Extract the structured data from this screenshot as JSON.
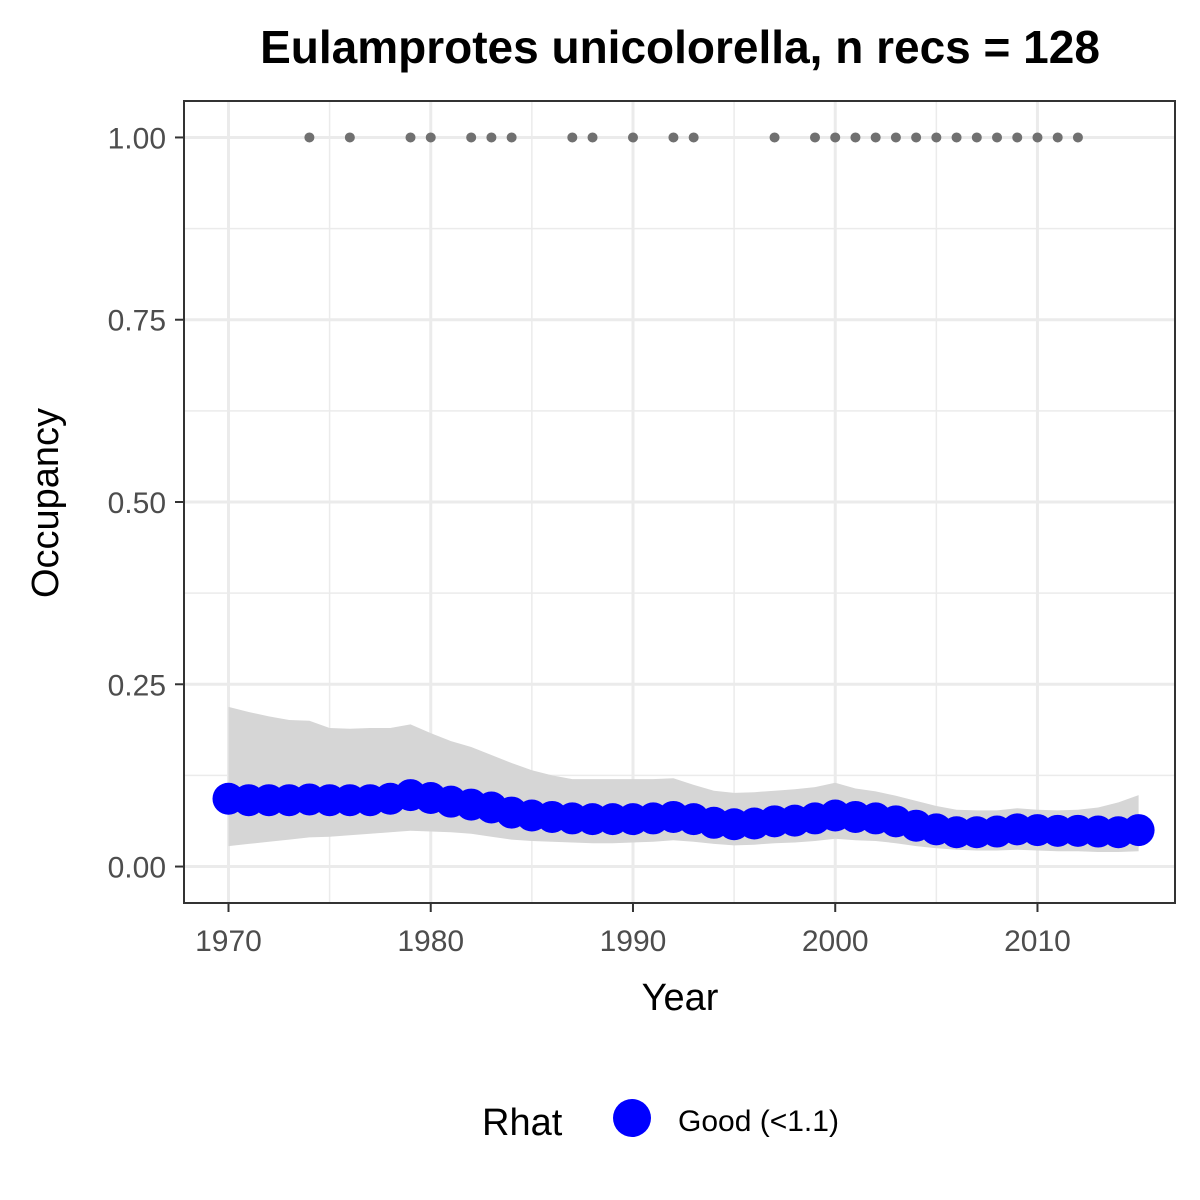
{
  "chart_data": {
    "type": "scatter",
    "title": "Eulamprotes unicolorella, n recs = 128",
    "xlabel": "Year",
    "ylabel": "Occupancy",
    "xlim": [
      1967.8,
      2016.8
    ],
    "ylim": [
      -0.05,
      1.05
    ],
    "x_ticks": [
      1970,
      1980,
      1990,
      2000,
      2010
    ],
    "x_tick_labels": [
      "1970",
      "1980",
      "1990",
      "2000",
      "2010"
    ],
    "y_ticks": [
      0,
      0.25,
      0.5,
      0.75,
      1.0
    ],
    "y_tick_labels": [
      "0.00",
      "0.25",
      "0.50",
      "0.75",
      "1.00"
    ],
    "grid": true,
    "legend_position": "bottom",
    "legend_title": "Rhat",
    "colors": {
      "estimate": "#0000ff",
      "ribbon": "#d6d6d6",
      "records": "#707070",
      "grid": "#ebebeb",
      "panel_border": "#333333"
    },
    "series": [
      {
        "name": "Good (<1.1)",
        "kind": "occupancy_estimate",
        "x": [
          1970,
          1971,
          1972,
          1973,
          1974,
          1975,
          1976,
          1977,
          1978,
          1979,
          1980,
          1981,
          1982,
          1983,
          1984,
          1985,
          1986,
          1987,
          1988,
          1989,
          1990,
          1991,
          1992,
          1993,
          1994,
          1995,
          1996,
          1997,
          1998,
          1999,
          2000,
          2001,
          2002,
          2003,
          2004,
          2005,
          2006,
          2007,
          2008,
          2009,
          2010,
          2011,
          2012,
          2013,
          2014,
          2015
        ],
        "y": [
          0.093,
          0.091,
          0.091,
          0.091,
          0.092,
          0.091,
          0.091,
          0.091,
          0.093,
          0.098,
          0.094,
          0.089,
          0.085,
          0.081,
          0.074,
          0.07,
          0.068,
          0.066,
          0.065,
          0.065,
          0.065,
          0.066,
          0.068,
          0.065,
          0.06,
          0.058,
          0.059,
          0.062,
          0.063,
          0.066,
          0.07,
          0.068,
          0.066,
          0.062,
          0.056,
          0.051,
          0.047,
          0.047,
          0.048,
          0.051,
          0.05,
          0.049,
          0.049,
          0.048,
          0.047,
          0.05
        ],
        "lower": [
          0.028,
          0.031,
          0.034,
          0.037,
          0.04,
          0.041,
          0.043,
          0.045,
          0.047,
          0.049,
          0.048,
          0.047,
          0.045,
          0.041,
          0.037,
          0.035,
          0.034,
          0.033,
          0.032,
          0.032,
          0.033,
          0.034,
          0.036,
          0.034,
          0.031,
          0.029,
          0.03,
          0.032,
          0.033,
          0.035,
          0.038,
          0.036,
          0.035,
          0.032,
          0.028,
          0.025,
          0.023,
          0.022,
          0.022,
          0.023,
          0.022,
          0.021,
          0.021,
          0.02,
          0.02,
          0.021
        ],
        "upper": [
          0.219,
          0.212,
          0.206,
          0.201,
          0.2,
          0.19,
          0.189,
          0.19,
          0.19,
          0.195,
          0.183,
          0.172,
          0.164,
          0.153,
          0.142,
          0.132,
          0.125,
          0.12,
          0.12,
          0.12,
          0.12,
          0.12,
          0.121,
          0.112,
          0.104,
          0.101,
          0.102,
          0.104,
          0.106,
          0.109,
          0.115,
          0.107,
          0.103,
          0.097,
          0.09,
          0.083,
          0.078,
          0.077,
          0.077,
          0.08,
          0.078,
          0.077,
          0.078,
          0.081,
          0.088,
          0.098
        ]
      },
      {
        "name": "",
        "kind": "observed_records",
        "x": [
          1974,
          1976,
          1979,
          1980,
          1982,
          1983,
          1984,
          1987,
          1988,
          1990,
          1992,
          1993,
          1997,
          1999,
          2000,
          2001,
          2002,
          2003,
          2004,
          2005,
          2006,
          2007,
          2008,
          2009,
          2010,
          2011,
          2012
        ],
        "y": [
          1,
          1,
          1,
          1,
          1,
          1,
          1,
          1,
          1,
          1,
          1,
          1,
          1,
          1,
          1,
          1,
          1,
          1,
          1,
          1,
          1,
          1,
          1,
          1,
          1,
          1,
          1
        ]
      }
    ]
  }
}
